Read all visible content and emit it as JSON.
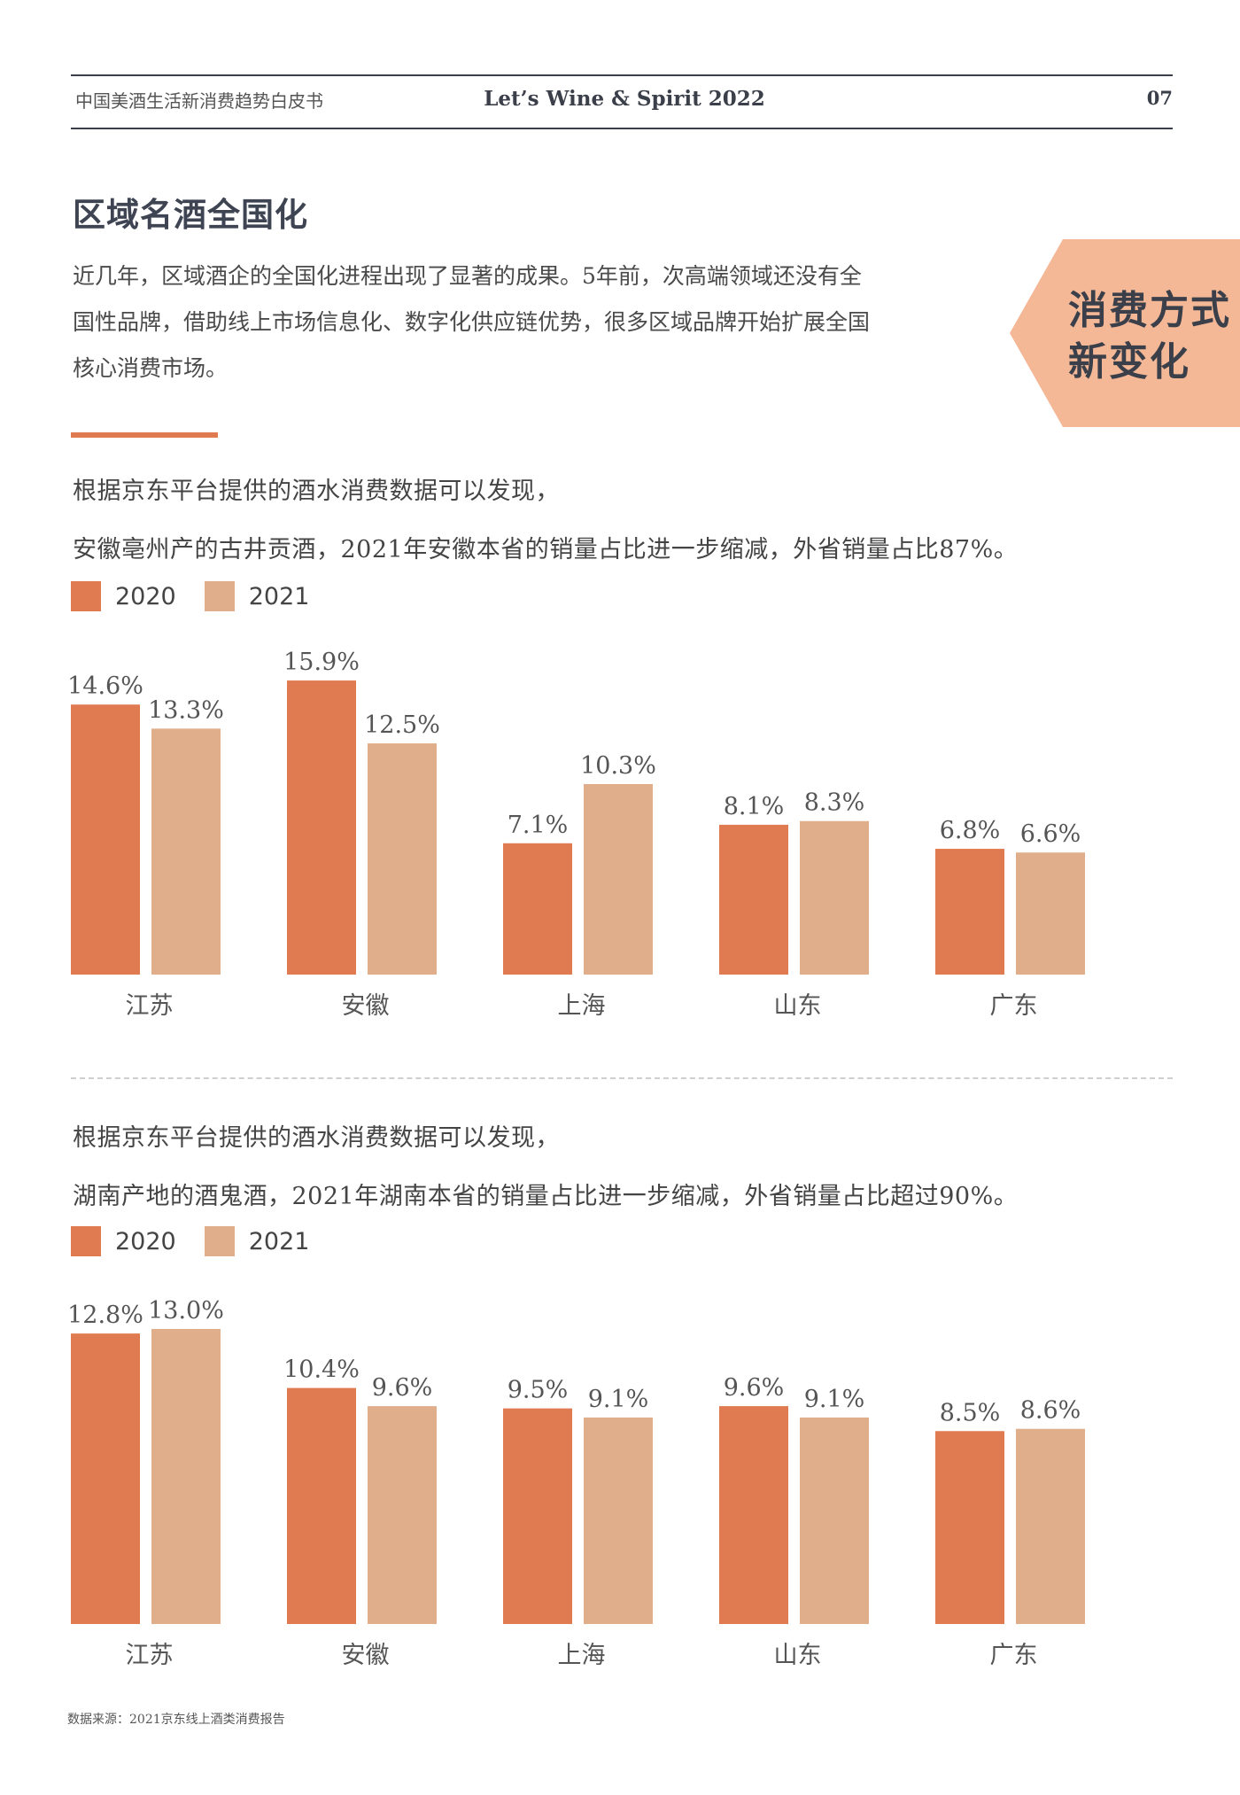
{
  "header": {
    "left": "中国美酒生活新消费趋势白皮书",
    "center": "Let’s Wine & Spirit 2022",
    "page": "07"
  },
  "section": {
    "title": "区域名酒全国化",
    "intro_lines": [
      "近几年，区域酒企的全国化进程出现了显著的成果。5年前，次高端领域还没有全",
      "国性品牌，借助线上市场信息化、数字化供应链优势，很多区域品牌开始扩展全国",
      "核心消费市场。"
    ]
  },
  "badge": {
    "line1": "消费方式",
    "line2": "新变化"
  },
  "block1": {
    "line1": "根据京东平台提供的酒水消费数据可以发现，",
    "line2": "安徽亳州产的古井贡酒，2021年安徽本省的销量占比进一步缩减，外省销量占比87%。"
  },
  "block2": {
    "line1": "根据京东平台提供的酒水消费数据可以发现，",
    "line2": "湖南产地的酒鬼酒，2021年湖南本省的销量占比进一步缩减，外省销量占比超过90%。"
  },
  "legend": {
    "items": [
      {
        "label": "2020",
        "color": "#e07a50"
      },
      {
        "label": "2021",
        "color": "#e0ae8a"
      }
    ]
  },
  "chart_data": [
    {
      "type": "bar",
      "categories": [
        "江苏",
        "安徽",
        "上海",
        "山东",
        "广东"
      ],
      "series": [
        {
          "name": "2020",
          "values": [
            14.6,
            15.9,
            7.1,
            8.1,
            6.8
          ],
          "color": "#e07a50"
        },
        {
          "name": "2021",
          "values": [
            13.3,
            12.5,
            10.3,
            8.3,
            6.6
          ],
          "color": "#e0ae8a"
        }
      ],
      "value_labels": [
        [
          "14.6%",
          "15.9%",
          "7.1%",
          "8.1%",
          "6.8%"
        ],
        [
          "13.3%",
          "12.5%",
          "10.3%",
          "8.3%",
          "6.6%"
        ]
      ],
      "ylim": [
        0,
        16
      ]
    },
    {
      "type": "bar",
      "categories": [
        "江苏",
        "安徽",
        "上海",
        "山东",
        "广东"
      ],
      "series": [
        {
          "name": "2020",
          "values": [
            12.8,
            10.4,
            9.5,
            9.6,
            8.5
          ],
          "color": "#e07a50"
        },
        {
          "name": "2021",
          "values": [
            13.0,
            9.6,
            9.1,
            9.1,
            8.6
          ],
          "color": "#e0ae8a"
        }
      ],
      "value_labels": [
        [
          "12.8%",
          "10.4%",
          "9.5%",
          "9.6%",
          "8.5%"
        ],
        [
          "13.0%",
          "9.6%",
          "9.1%",
          "9.1%",
          "8.6%"
        ]
      ],
      "ylim": [
        0,
        13
      ]
    }
  ],
  "footer": {
    "source": "数据来源：2021京东线上酒类消费报告"
  }
}
